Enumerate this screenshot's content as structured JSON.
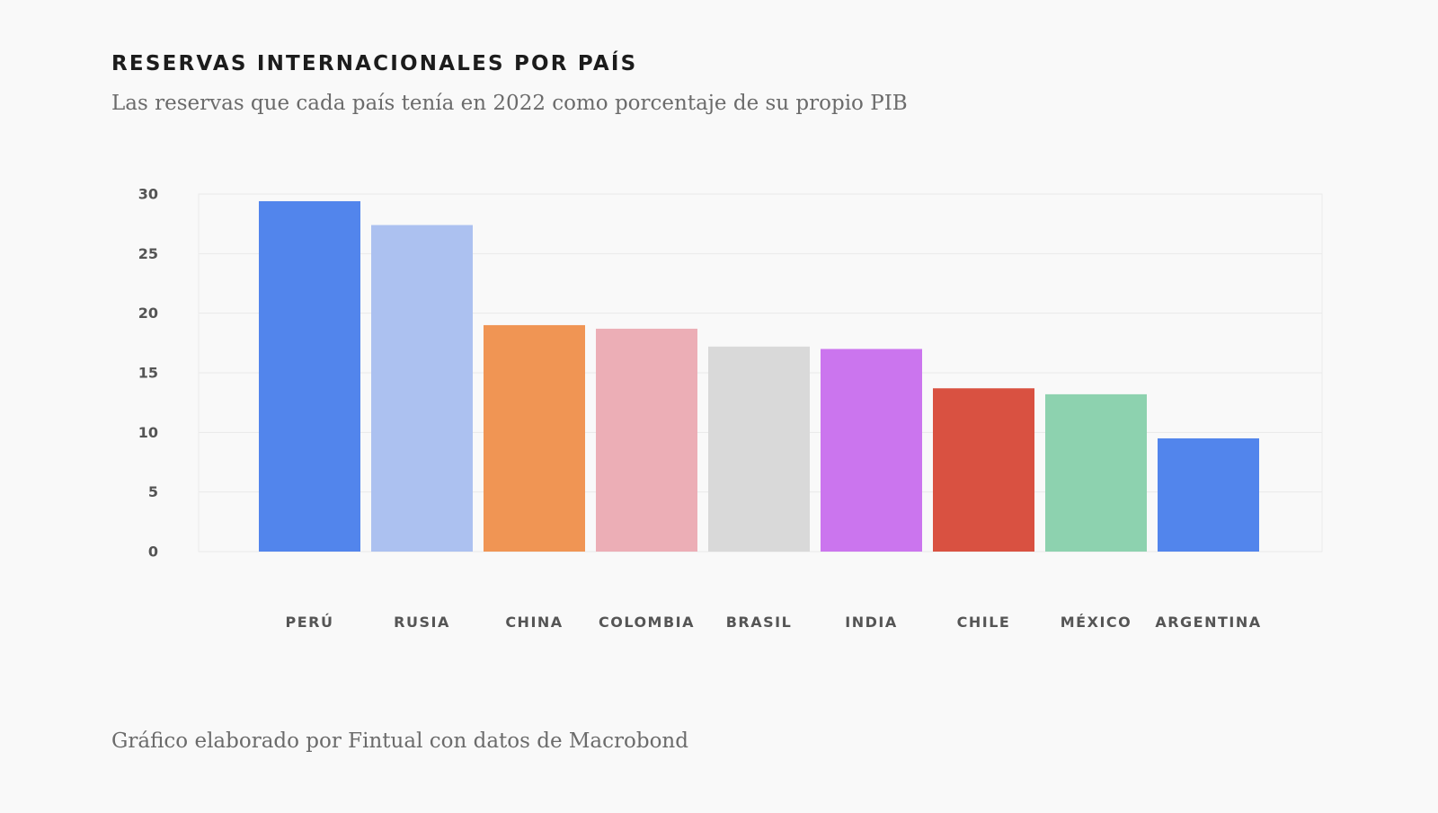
{
  "chart_data": {
    "type": "bar",
    "title": "RESERVAS INTERNACIONALES POR PAÍS",
    "subtitle": "Las reservas que cada país tenía en 2022 como porcentaje de su propio PIB",
    "xlabel": "",
    "ylabel": "",
    "ylim": [
      0,
      30
    ],
    "yticks": [
      0,
      5,
      10,
      15,
      20,
      25,
      30
    ],
    "grid": true,
    "legend": "none",
    "categories": [
      "PERÚ",
      "RUSIA",
      "CHINA",
      "COLOMBIA",
      "BRASIL",
      "INDIA",
      "CHILE",
      "MÉXICO",
      "ARGENTINA"
    ],
    "values": [
      29.4,
      27.4,
      19.0,
      18.7,
      17.2,
      17.0,
      13.7,
      13.2,
      9.5
    ],
    "colors": [
      "#5285ec",
      "#acc1f0",
      "#f09554",
      "#ecaeb6",
      "#d9d9d9",
      "#cb75ee",
      "#d95141",
      "#8dd2af",
      "#5285ec"
    ]
  },
  "footer": "Gráfico elaborado por Fintual con datos de Macrobond"
}
